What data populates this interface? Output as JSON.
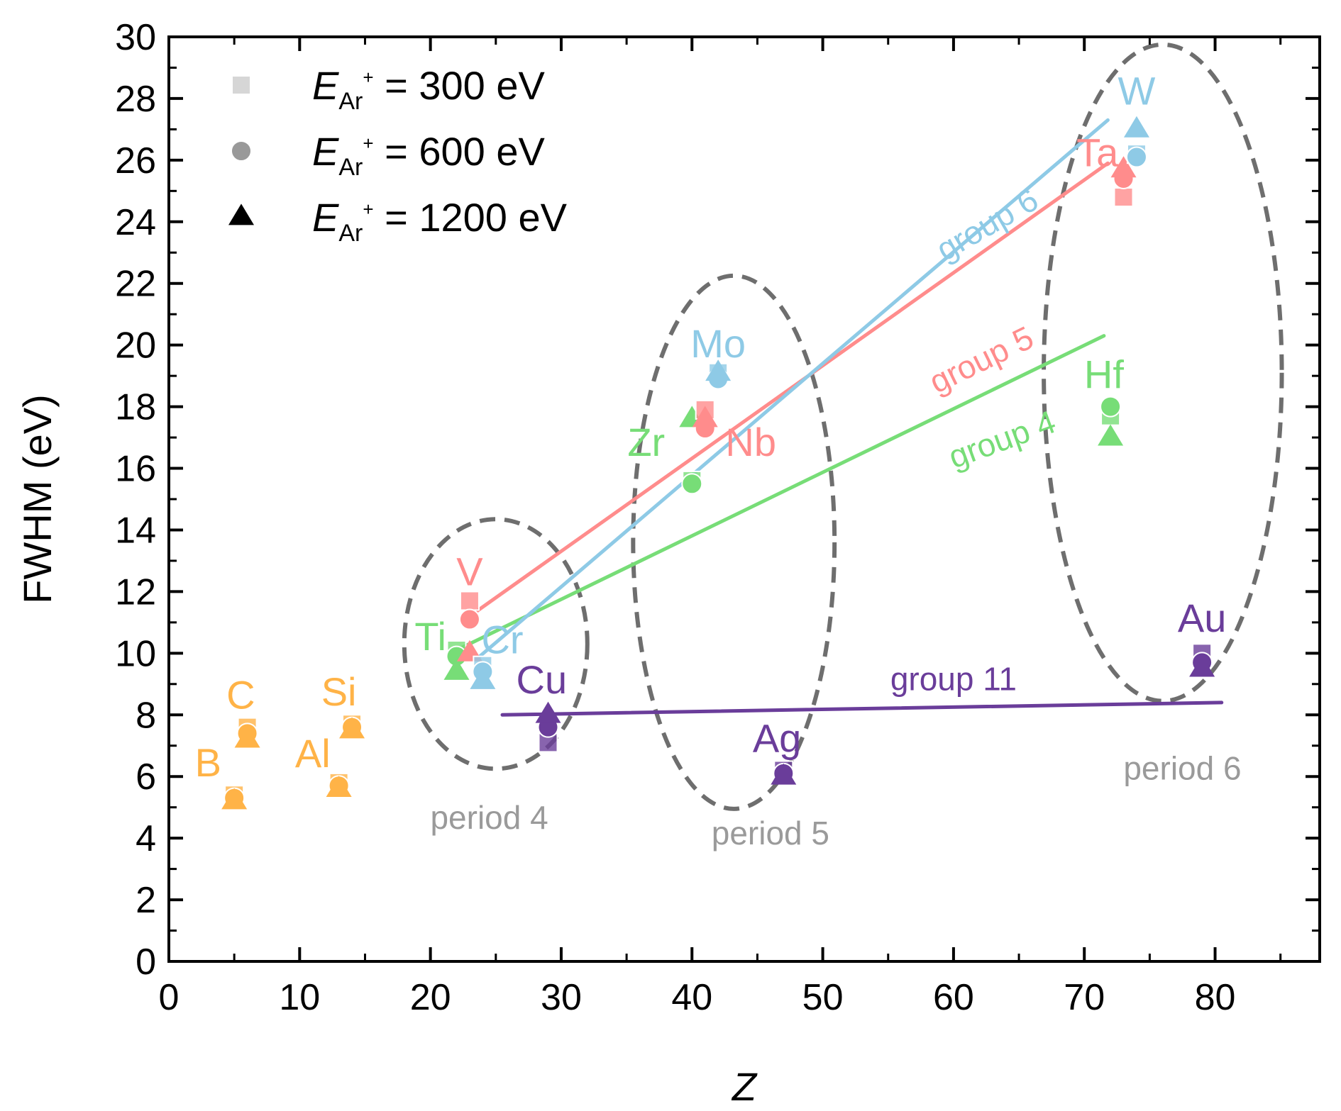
{
  "chart_data": {
    "type": "scatter",
    "xlabel": "Z",
    "ylabel": "FWHM (eV)",
    "xlim": [
      0,
      88
    ],
    "ylim": [
      0,
      30
    ],
    "x_ticks": [
      "0",
      "10",
      "20",
      "30",
      "40",
      "50",
      "60",
      "70",
      "80"
    ],
    "y_ticks": [
      "0",
      "2",
      "4",
      "6",
      "8",
      "10",
      "12",
      "14",
      "16",
      "18",
      "20",
      "22",
      "24",
      "26",
      "28",
      "30"
    ],
    "legend": {
      "position": "top-left",
      "entries": [
        {
          "marker": "square",
          "symbol": "E",
          "sub": "Ar",
          "sup": "+",
          "text": " = 300 eV"
        },
        {
          "marker": "circle",
          "symbol": "E",
          "sub": "Ar",
          "sup": "+",
          "text": " = 600 eV"
        },
        {
          "marker": "triangle",
          "symbol": "E",
          "sub": "Ar",
          "sup": "+",
          "text": " = 1200 eV"
        }
      ]
    },
    "colors": {
      "light": "#ffb347",
      "group4": "#77dd77",
      "group5": "#ff8c8c",
      "group6": "#8ecae6",
      "group11": "#6a3d9a",
      "period": "#6e6e6e",
      "period_label": "#9a9a9a"
    },
    "elements": [
      {
        "symbol": "B",
        "Z": 5,
        "color": "#ffb347",
        "e300": 5.4,
        "e600": 5.3,
        "e1200": 5.2
      },
      {
        "symbol": "C",
        "Z": 6,
        "color": "#ffb347",
        "e300": 7.6,
        "e600": 7.4,
        "e1200": 7.2
      },
      {
        "symbol": "Al",
        "Z": 13,
        "color": "#ffb347",
        "e300": 5.8,
        "e600": 5.7,
        "e1200": 5.6
      },
      {
        "symbol": "Si",
        "Z": 14,
        "color": "#ffb347",
        "e300": 7.7,
        "e600": 7.6,
        "e1200": 7.5
      },
      {
        "symbol": "Ti",
        "Z": 22,
        "color": "#77dd77",
        "e300": 10.1,
        "e600": 9.9,
        "e1200": 9.4
      },
      {
        "symbol": "V",
        "Z": 23,
        "color": "#ff8c8c",
        "e300": 11.7,
        "e600": 11.1,
        "e1200": 10.0
      },
      {
        "symbol": "Cr",
        "Z": 24,
        "color": "#8ecae6",
        "e300": 9.6,
        "e600": 9.4,
        "e1200": 9.1
      },
      {
        "symbol": "Cu",
        "Z": 29,
        "color": "#6a3d9a",
        "e300": 7.1,
        "e600": 7.6,
        "e1200": 8.0
      },
      {
        "symbol": "Zr",
        "Z": 40,
        "color": "#77dd77",
        "e300": 15.6,
        "e600": 15.5,
        "e1200": 17.6
      },
      {
        "symbol": "Nb",
        "Z": 41,
        "color": "#ff8c8c",
        "e300": 17.9,
        "e600": 17.3,
        "e1200": 17.6
      },
      {
        "symbol": "Mo",
        "Z": 42,
        "color": "#8ecae6",
        "e300": 19.1,
        "e600": 18.9,
        "e1200": 19.1
      },
      {
        "symbol": "Ag",
        "Z": 47,
        "color": "#6a3d9a",
        "e300": 6.2,
        "e600": 6.1,
        "e1200": 6.0
      },
      {
        "symbol": "Hf",
        "Z": 72,
        "color": "#77dd77",
        "e300": 17.7,
        "e600": 18.0,
        "e1200": 17.0
      },
      {
        "symbol": "Ta",
        "Z": 73,
        "color": "#ff8c8c",
        "e300": 24.8,
        "e600": 25.4,
        "e1200": 25.7
      },
      {
        "symbol": "W",
        "Z": 74,
        "color": "#8ecae6",
        "e300": 26.2,
        "e600": 26.1,
        "e1200": 27.0
      },
      {
        "symbol": "Au",
        "Z": 79,
        "color": "#6a3d9a",
        "e300": 10.0,
        "e600": 9.7,
        "e1200": 9.5
      }
    ],
    "label_positions": {
      "B": [
        3,
        6.0
      ],
      "C": [
        5.5,
        8.2
      ],
      "Al": [
        11,
        6.3
      ],
      "Si": [
        13,
        8.3
      ],
      "Ti": [
        20,
        10.1
      ],
      "V": [
        23,
        12.2
      ],
      "Cr": [
        25.5,
        10.0
      ],
      "Cu": [
        28.5,
        8.7
      ],
      "Zr": [
        36.5,
        16.4
      ],
      "Nb": [
        44.5,
        16.4
      ],
      "Mo": [
        42,
        19.6
      ],
      "Ag": [
        46.5,
        6.8
      ],
      "Hf": [
        71.5,
        18.6
      ],
      "Ta": [
        71,
        25.8
      ],
      "W": [
        74,
        27.8
      ],
      "Au": [
        79,
        10.7
      ]
    },
    "fit_lines": [
      {
        "name": "group 4",
        "color": "#77dd77",
        "x": [
          22,
          71.5
        ],
        "y": [
          10.1,
          20.3
        ]
      },
      {
        "name": "group 5",
        "color": "#ff8c8c",
        "x": [
          23,
          71.8
        ],
        "y": [
          11.2,
          25.9
        ]
      },
      {
        "name": "group 6",
        "color": "#8ecae6",
        "x": [
          23.5,
          71.8
        ],
        "y": [
          9.8,
          27.3
        ]
      },
      {
        "name": "group 11",
        "color": "#6a3d9a",
        "x": [
          25.5,
          80.5
        ],
        "y": [
          8.0,
          8.4
        ]
      }
    ],
    "group_labels": [
      {
        "text": "group 4",
        "x": 64,
        "y": 16.6,
        "angle": -20,
        "color": "#77dd77"
      },
      {
        "text": "group 5",
        "x": 62.5,
        "y": 19.2,
        "angle": -26,
        "color": "#ff8c8c"
      },
      {
        "text": "group 6",
        "x": 63,
        "y": 23.6,
        "angle": -30,
        "color": "#8ecae6"
      },
      {
        "text": "group 11",
        "x": 60,
        "y": 8.8,
        "angle": 0,
        "color": "#6a3d9a"
      }
    ],
    "period_ellipses": [
      {
        "name": "period 4",
        "cx": 25,
        "cy": 10.3,
        "rx": 7,
        "ry": 4.05
      },
      {
        "name": "period 5",
        "cx": 43.2,
        "cy": 13.6,
        "rx": 7.7,
        "ry": 8.65
      },
      {
        "name": "period 6",
        "cx": 76,
        "cy": 19.1,
        "rx": 9.1,
        "ry": 10.65
      }
    ],
    "period_labels": [
      {
        "text": "period 4",
        "x": 24.5,
        "y": 4.3
      },
      {
        "text": "period 5",
        "x": 46,
        "y": 3.8
      },
      {
        "text": "period 6",
        "x": 77.5,
        "y": 5.9
      }
    ]
  }
}
